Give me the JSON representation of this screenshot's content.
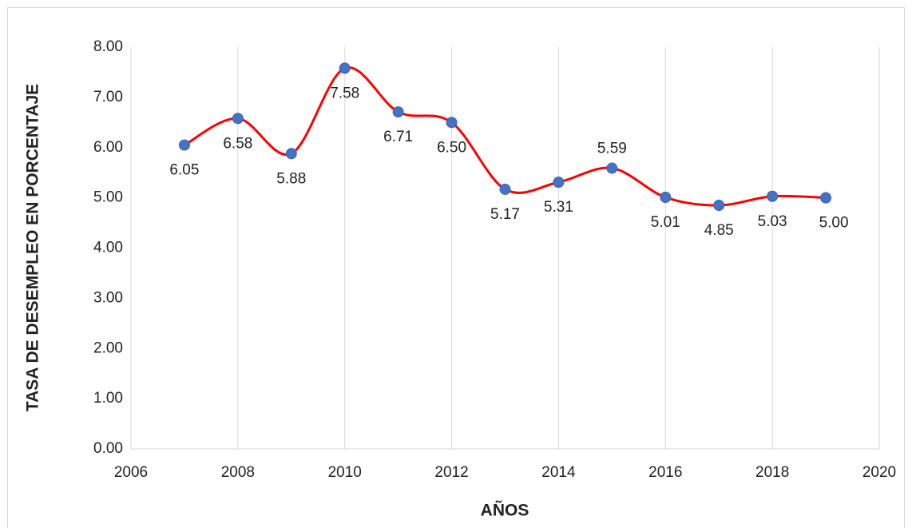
{
  "chart_data": {
    "type": "line",
    "x_label": "AÑOS",
    "y_label": "TASA DE DESEMPLEO EN PORCENTAJE",
    "x": [
      2007,
      2008,
      2009,
      2010,
      2011,
      2012,
      2013,
      2014,
      2015,
      2016,
      2017,
      2018,
      2019
    ],
    "values": [
      6.05,
      6.58,
      5.88,
      7.58,
      6.71,
      6.5,
      5.17,
      5.31,
      5.59,
      5.01,
      4.85,
      5.03,
      5.0
    ],
    "value_labels": [
      "6.05",
      "6.58",
      "5.88",
      "7.58",
      "6.71",
      "6.50",
      "5.17",
      "5.31",
      "5.59",
      "5.01",
      "4.85",
      "5.03",
      "5.00"
    ],
    "color": "#ff0000",
    "marker_color": "#4472c4",
    "smooth": true,
    "xlim": [
      2006,
      2020
    ],
    "xticks": [
      2006,
      2008,
      2010,
      2012,
      2014,
      2016,
      2018,
      2020
    ],
    "ylim": [
      0,
      8
    ],
    "yticks": [
      {
        "value": 0,
        "label": "0.00"
      },
      {
        "value": 1,
        "label": "1.00"
      },
      {
        "value": 2,
        "label": "2.00"
      },
      {
        "value": 3,
        "label": "3.00"
      },
      {
        "value": 4,
        "label": "4.00"
      },
      {
        "value": 5,
        "label": "5.00"
      },
      {
        "value": 6,
        "label": "6.00"
      },
      {
        "value": 7,
        "label": "7.00"
      },
      {
        "value": 8,
        "label": "8.00"
      }
    ],
    "grid": "x"
  }
}
